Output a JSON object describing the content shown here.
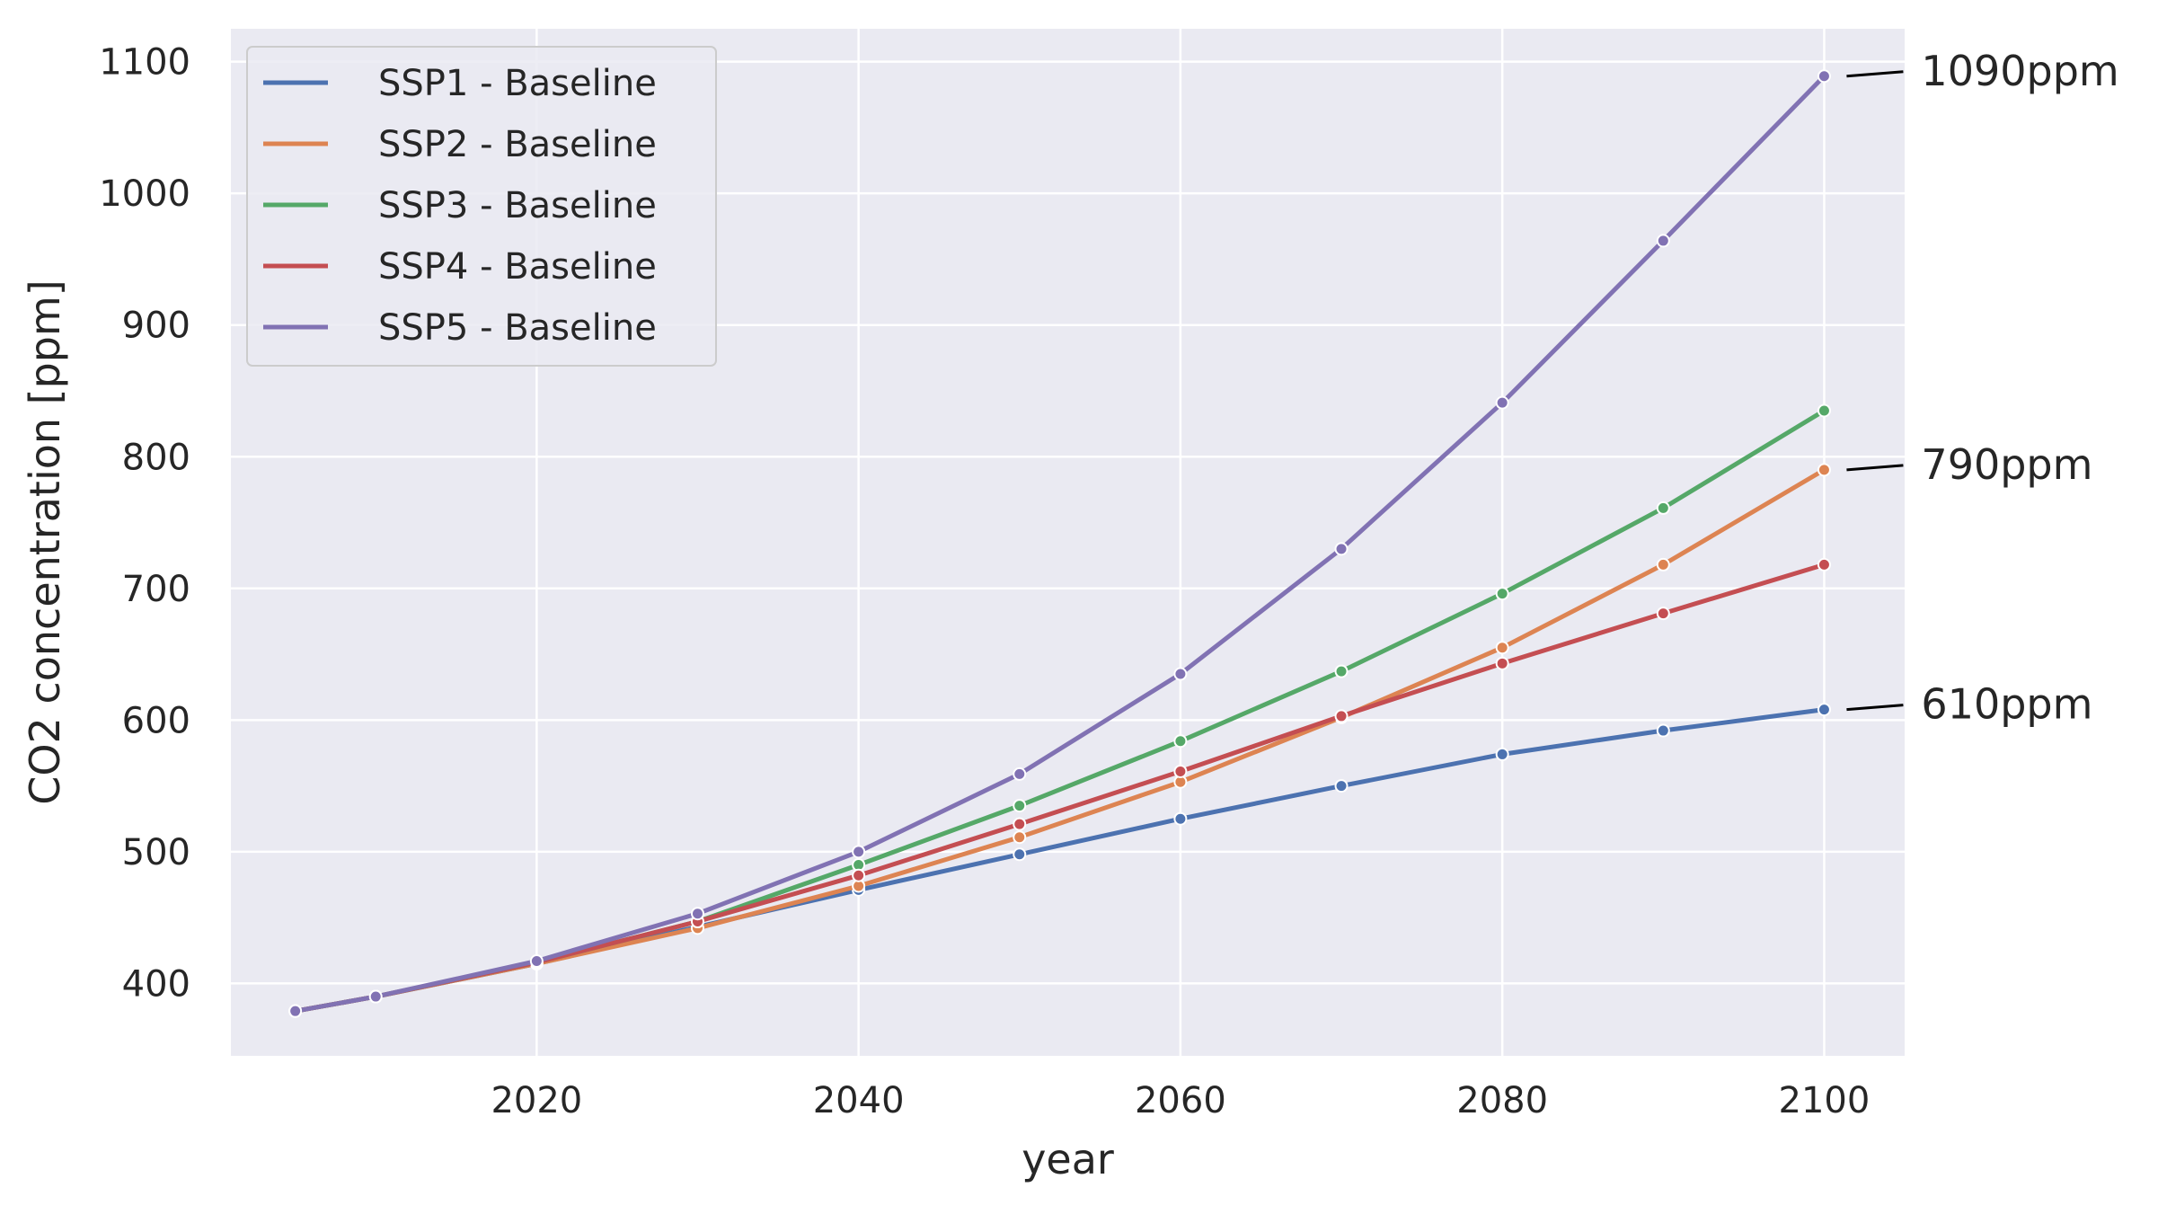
{
  "chart_data": {
    "type": "line",
    "xlabel": "year",
    "ylabel": "CO2 concentration [ppm]",
    "xlim": [
      2001,
      2105
    ],
    "ylim": [
      345,
      1125
    ],
    "xticks": [
      2020,
      2040,
      2060,
      2080,
      2100
    ],
    "yticks": [
      400,
      500,
      600,
      700,
      800,
      900,
      1000,
      1100
    ],
    "grid": true,
    "legend_position": "top-left",
    "x": [
      2005,
      2010,
      2020,
      2030,
      2040,
      2050,
      2060,
      2070,
      2080,
      2090,
      2100
    ],
    "series": [
      {
        "name": "SSP1 - Baseline",
        "color": "#4c72b0",
        "values": [
          379,
          390,
          415,
          443,
          471,
          498,
          525,
          550,
          574,
          592,
          608
        ]
      },
      {
        "name": "SSP2 - Baseline",
        "color": "#dd8452",
        "values": [
          379,
          390,
          415,
          442,
          474,
          511,
          553,
          602,
          655,
          718,
          790
        ]
      },
      {
        "name": "SSP3 - Baseline",
        "color": "#55a868",
        "values": [
          379,
          390,
          416,
          447,
          490,
          535,
          584,
          637,
          696,
          761,
          835
        ]
      },
      {
        "name": "SSP4 - Baseline",
        "color": "#c44e52",
        "values": [
          379,
          390,
          416,
          447,
          482,
          521,
          561,
          603,
          643,
          681,
          718
        ]
      },
      {
        "name": "SSP5 - Baseline",
        "color": "#8172b3",
        "values": [
          379,
          390,
          417,
          453,
          500,
          559,
          635,
          730,
          841,
          964,
          1089
        ]
      }
    ],
    "annotations": [
      {
        "text": "1090ppm",
        "x": 2100,
        "y": 1089
      },
      {
        "text": "790ppm",
        "x": 2100,
        "y": 790
      },
      {
        "text": "610ppm",
        "x": 2100,
        "y": 608
      }
    ]
  }
}
